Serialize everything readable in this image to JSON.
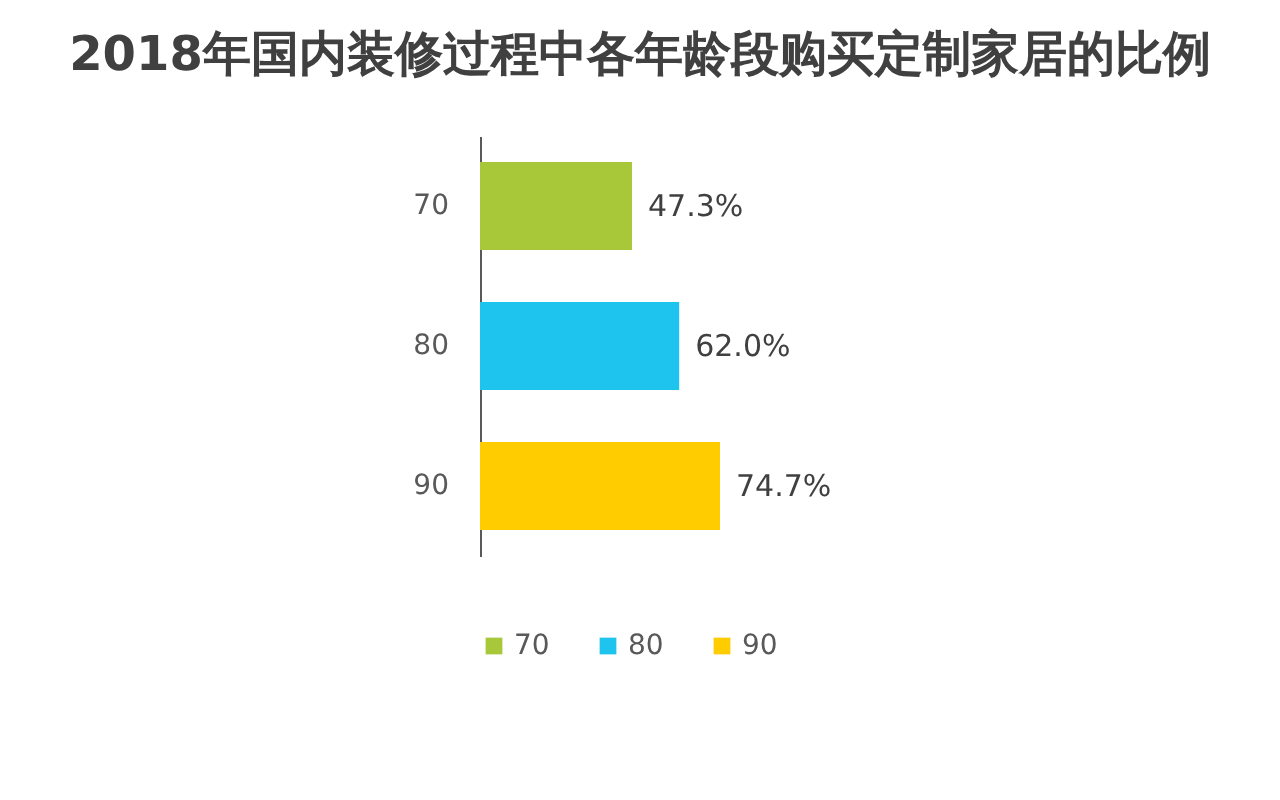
{
  "chart_data": {
    "type": "bar",
    "orientation": "horizontal",
    "title": "2018年国内装修过程中各年龄段购买定制家居的比例",
    "categories": [
      "70",
      "80",
      "90"
    ],
    "series": [
      {
        "name": "70",
        "color": "#a8c83a",
        "values": [
          47.3,
          null,
          null
        ],
        "value_labels": [
          "47.3%",
          null,
          null
        ]
      },
      {
        "name": "80",
        "color": "#1ec3ee",
        "values": [
          null,
          62.0,
          null
        ],
        "value_labels": [
          null,
          "62.0%",
          null
        ]
      },
      {
        "name": "90",
        "color": "#ffcc00",
        "values": [
          null,
          null,
          74.7
        ],
        "value_labels": [
          null,
          null,
          "74.7%"
        ]
      }
    ],
    "legend": "bottom"
  }
}
